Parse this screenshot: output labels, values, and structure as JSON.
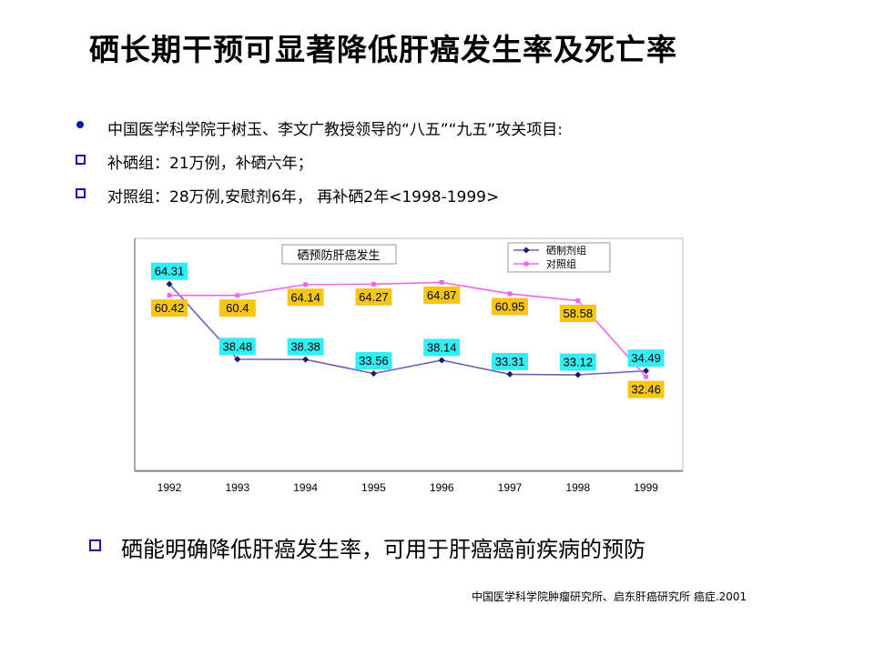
{
  "title": "硒长期干预可显著降低肝癌发生率及死亡率",
  "bullets": [
    {
      "text": "中国医学科学院于树玉、李文广教授领导的“八五”“九五”攻关项目:",
      "marker": "dot"
    },
    {
      "text": "补硒组：21万例，补硒六年；",
      "marker": "square"
    },
    {
      "text": "对照组：28万例,安慰剂6年， 再补硒2年<1998-1999>",
      "marker": "square"
    }
  ],
  "conclusion": "硒能明确降低肝癌发生率，可用于肝癌癌前疾病的预防",
  "source": "中国医学科学院肿瘤研究所、启东肝癌研究所 癌症.2001",
  "colors": {
    "bullet": "#0a1ab0",
    "selenium": "#6a63b8",
    "control": "#f066f0",
    "selenium_label_bg": "#33eef5",
    "control_label_bg": "#f5c518"
  },
  "chart_data": {
    "type": "line",
    "title": "硒预防肝癌发生",
    "categories": [
      "1992",
      "1993",
      "1994",
      "1995",
      "1996",
      "1997",
      "1998",
      "1999"
    ],
    "series": [
      {
        "name": "硒制剂组",
        "values": [
          64.31,
          38.48,
          38.38,
          33.56,
          38.14,
          33.31,
          33.12,
          34.49
        ],
        "marker": "diamond"
      },
      {
        "name": "对照组",
        "values": [
          60.42,
          60.4,
          64.14,
          64.27,
          64.87,
          60.95,
          58.58,
          32.46
        ],
        "marker": "square"
      }
    ],
    "ylim": [
      0,
      80
    ],
    "legend": "top-right",
    "grid": false
  }
}
